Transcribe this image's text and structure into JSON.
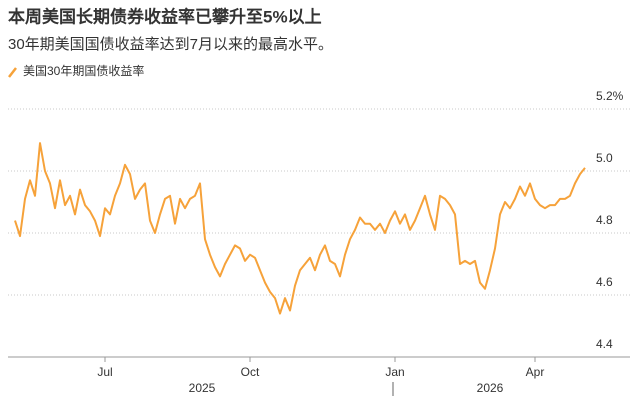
{
  "chart_data": {
    "type": "line",
    "title": "本周美国长期债券收益率已攀升至5%以上",
    "subtitle": "30年期美国国债收益率达到7月以来的最高水平。",
    "categories": [
      null,
      null,
      null,
      null,
      null,
      null,
      null,
      null,
      null,
      null,
      null,
      null,
      null,
      null,
      null,
      null,
      null,
      null,
      "Jul",
      null,
      null,
      null,
      null,
      null,
      null,
      null,
      null,
      null,
      null,
      null,
      null,
      null,
      null,
      null,
      null,
      null,
      null,
      null,
      null,
      null,
      null,
      null,
      null,
      null,
      null,
      null,
      null,
      "Oct",
      null,
      null,
      null,
      null,
      null,
      null,
      null,
      null,
      null,
      null,
      null,
      null,
      null,
      null,
      null,
      null,
      null,
      null,
      null,
      null,
      null,
      null,
      null,
      null,
      null,
      null,
      null,
      null,
      "Jan",
      null,
      null,
      null,
      null,
      null,
      null,
      null,
      null,
      null,
      null,
      null,
      null,
      null,
      null,
      null,
      null,
      null,
      null,
      null,
      null,
      null,
      null,
      null,
      null,
      null,
      null,
      null,
      "Apr",
      null,
      null,
      null,
      null,
      null,
      null,
      null,
      null,
      null,
      null
    ],
    "series": [
      {
        "name": "美国30年期国债收益率",
        "color": "#f6a23a",
        "values": [
          4.84,
          4.79,
          4.91,
          4.97,
          4.92,
          5.09,
          5.0,
          4.96,
          4.88,
          4.97,
          4.89,
          4.92,
          4.86,
          4.94,
          4.89,
          4.87,
          4.84,
          4.79,
          4.88,
          4.86,
          4.92,
          4.96,
          5.02,
          4.99,
          4.91,
          4.94,
          4.96,
          4.84,
          4.8,
          4.86,
          4.91,
          4.92,
          4.83,
          4.91,
          4.88,
          4.91,
          4.92,
          4.96,
          4.78,
          4.73,
          4.69,
          4.66,
          4.7,
          4.73,
          4.76,
          4.75,
          4.71,
          4.73,
          4.72,
          4.68,
          4.64,
          4.61,
          4.59,
          4.54,
          4.59,
          4.55,
          4.63,
          4.68,
          4.7,
          4.72,
          4.68,
          4.73,
          4.76,
          4.71,
          4.7,
          4.66,
          4.73,
          4.78,
          4.81,
          4.85,
          4.83,
          4.83,
          4.81,
          4.83,
          4.8,
          4.84,
          4.87,
          4.83,
          4.86,
          4.81,
          4.84,
          4.88,
          4.92,
          4.86,
          4.81,
          4.92,
          4.91,
          4.89,
          4.86,
          4.7,
          4.71,
          4.7,
          4.71,
          4.64,
          4.62,
          4.68,
          4.75,
          4.86,
          4.9,
          4.88,
          4.91,
          4.95,
          4.92,
          4.96,
          4.91,
          4.89,
          4.88,
          4.89,
          4.89,
          4.91,
          4.91,
          4.92,
          4.96,
          4.99,
          5.01
        ]
      }
    ],
    "annotations": [
      "2025",
      "2026"
    ],
    "ylim": [
      4.4,
      5.25
    ],
    "yticks": [
      4.4,
      4.6,
      4.8,
      {
        "value": 5.0,
        "label": "5.0"
      },
      {
        "value": 5.2,
        "label": "5.2%"
      }
    ],
    "grid": true
  }
}
